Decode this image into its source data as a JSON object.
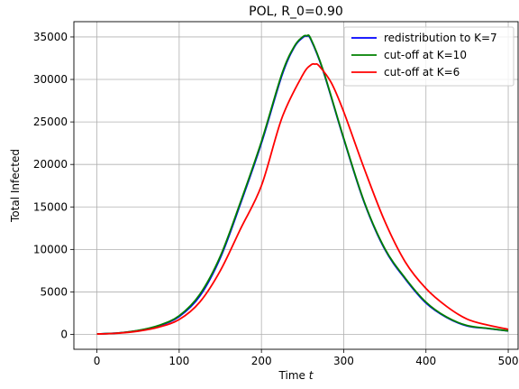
{
  "chart_data": {
    "type": "line",
    "title": "POL, R_0=0.90",
    "xlabel": "Time",
    "xlabel_var": "t",
    "ylabel": "Total Infected",
    "xlim": [
      -28,
      512
    ],
    "ylim": [
      -1750,
      36800
    ],
    "xticks": [
      0,
      100,
      200,
      300,
      400,
      500
    ],
    "yticks": [
      0,
      5000,
      10000,
      15000,
      20000,
      25000,
      30000,
      35000
    ],
    "grid": true,
    "legend_position": "top-right",
    "series": [
      {
        "name": "redistribution to K=7",
        "color": "#0000ff",
        "x": [
          0,
          25,
          50,
          75,
          100,
          125,
          150,
          175,
          200,
          225,
          240,
          250,
          255,
          260,
          275,
          300,
          325,
          350,
          375,
          400,
          425,
          450,
          475,
          500
        ],
        "y": [
          50,
          160,
          450,
          1000,
          2100,
          4500,
          9000,
          15500,
          22500,
          30500,
          33800,
          34900,
          35100,
          34700,
          31000,
          23000,
          15500,
          10000,
          6500,
          3700,
          2000,
          1000,
          700,
          400
        ]
      },
      {
        "name": "cut-off at K=10",
        "color": "#008000",
        "x": [
          0,
          25,
          50,
          75,
          100,
          125,
          150,
          175,
          200,
          225,
          240,
          250,
          255,
          260,
          275,
          300,
          325,
          350,
          375,
          400,
          425,
          450,
          475,
          500
        ],
        "y": [
          50,
          160,
          460,
          1050,
          2200,
          4700,
          9200,
          15700,
          22700,
          30700,
          33900,
          35000,
          35150,
          34800,
          31100,
          23100,
          15600,
          10100,
          6600,
          3800,
          2050,
          1050,
          720,
          420
        ]
      },
      {
        "name": "cut-off at K=6",
        "color": "#ff0000",
        "x": [
          0,
          25,
          50,
          75,
          100,
          125,
          150,
          175,
          200,
          225,
          250,
          260,
          265,
          270,
          285,
          300,
          325,
          350,
          375,
          400,
          425,
          450,
          475,
          500
        ],
        "y": [
          50,
          140,
          380,
          850,
          1750,
          3800,
          7500,
          12500,
          17500,
          25500,
          30500,
          31700,
          31800,
          31600,
          29600,
          26200,
          19500,
          13300,
          8500,
          5400,
          3300,
          1800,
          1100,
          600
        ]
      }
    ]
  }
}
